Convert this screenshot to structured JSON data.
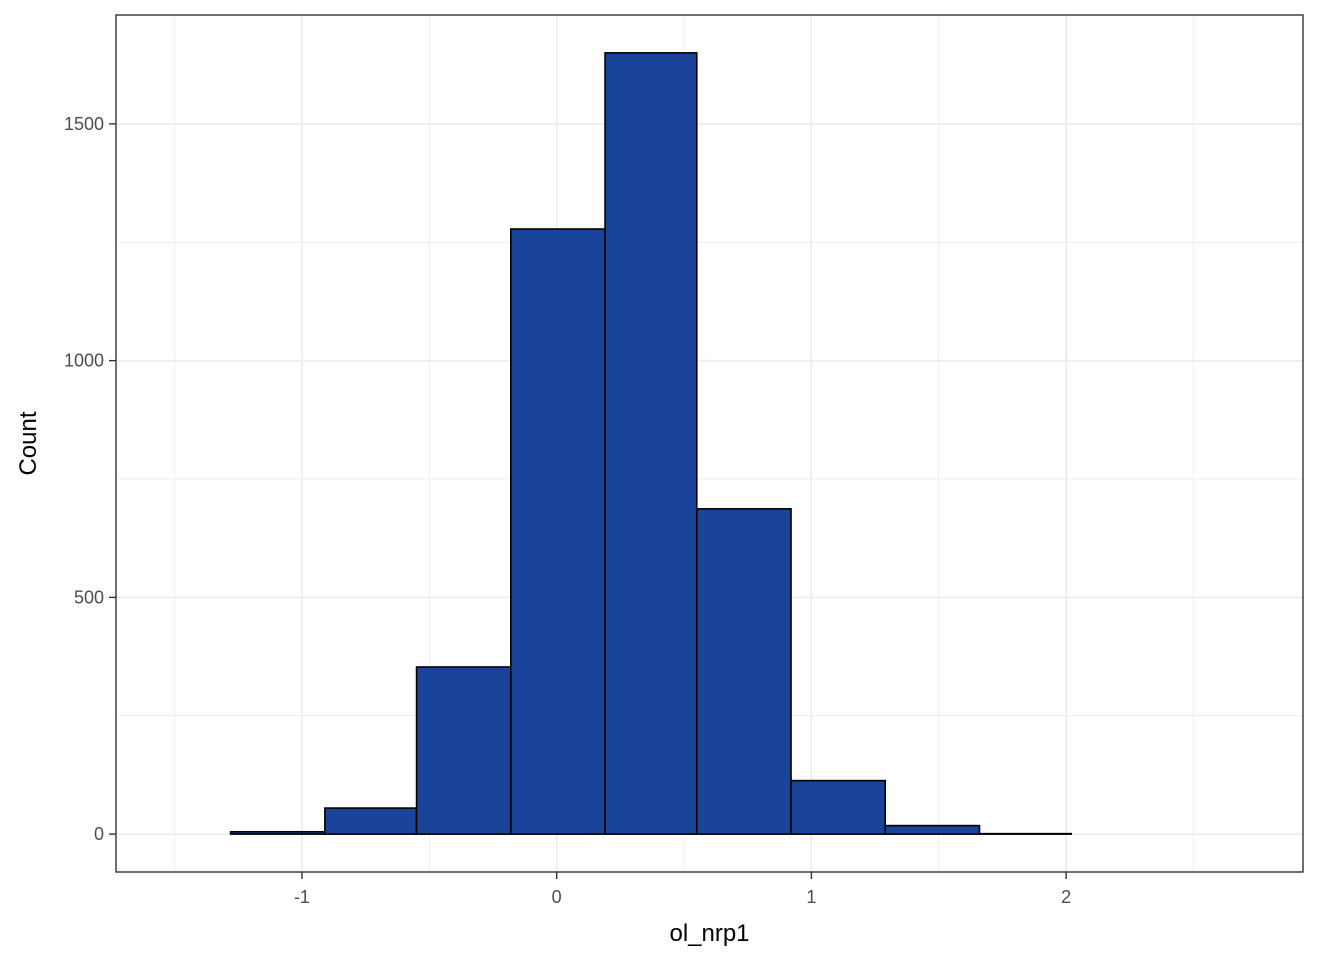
{
  "chart_data": {
    "type": "bar",
    "subtype": "histogram",
    "title": "",
    "xlabel": "ol_nrp1",
    "ylabel": "Count",
    "xlim": [
      -1.73,
      2.93
    ],
    "ylim": [
      -80,
      1730
    ],
    "x_ticks": [
      -1,
      0,
      1,
      2
    ],
    "x_tick_labels": [
      "-1",
      "0",
      "1",
      "2"
    ],
    "y_ticks": [
      0,
      500,
      1000,
      1500
    ],
    "y_tick_labels": [
      "0",
      "500",
      "1000",
      "1500"
    ],
    "grid": true,
    "bins": [
      {
        "x0": -1.65,
        "x1": -1.28,
        "count": 0
      },
      {
        "x0": -1.28,
        "x1": -0.91,
        "count": 5
      },
      {
        "x0": -0.91,
        "x1": -0.55,
        "count": 55
      },
      {
        "x0": -0.55,
        "x1": -0.18,
        "count": 353
      },
      {
        "x0": -0.18,
        "x1": 0.19,
        "count": 1278
      },
      {
        "x0": 0.19,
        "x1": 0.55,
        "count": 1650
      },
      {
        "x0": 0.55,
        "x1": 0.92,
        "count": 687
      },
      {
        "x0": 0.92,
        "x1": 1.29,
        "count": 113
      },
      {
        "x0": 1.29,
        "x1": 1.66,
        "count": 18
      },
      {
        "x0": 1.66,
        "x1": 2.02,
        "count": 1
      },
      {
        "x0": 2.02,
        "x1": 2.39,
        "count": 0
      },
      {
        "x0": 2.39,
        "x1": 2.76,
        "count": 0
      }
    ],
    "colors": {
      "fill": "#1a4499",
      "outline": "#000000",
      "grid": "#ebebeb",
      "border": "#333333"
    }
  }
}
